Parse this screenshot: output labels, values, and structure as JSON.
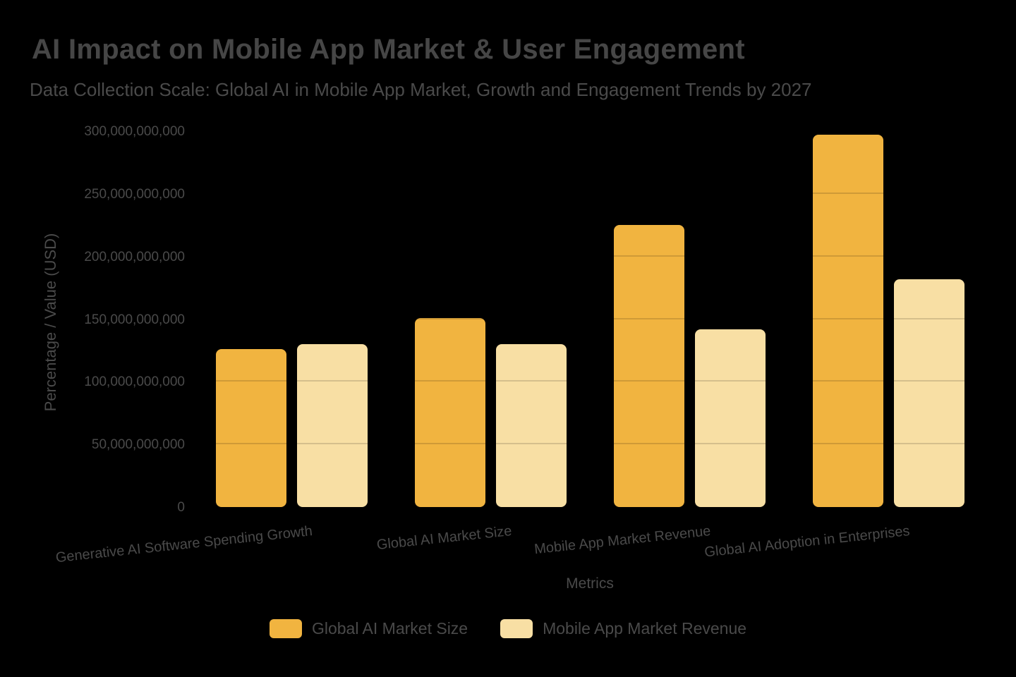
{
  "page": {
    "background": "#000000",
    "text_color": "#4a4a4a"
  },
  "chart_data": {
    "type": "bar",
    "title": "AI Impact on Mobile App Market & User Engagement",
    "subtitle": "Data Collection Scale: Global AI in Mobile App Market, Growth and Engagement Trends by 2027",
    "xlabel": "Metrics",
    "ylabel": "Percentage / Value (USD)",
    "categories": [
      "Generative AI Software Spending Growth",
      "Global AI Market Size",
      "Mobile App Market Revenue",
      "Global AI Adoption in Enterprises"
    ],
    "series": [
      {
        "name": "Global AI Market Size",
        "color": "#F1B440",
        "values": [
          126000000000,
          151000000000,
          225000000000,
          297000000000
        ]
      },
      {
        "name": "Mobile App Market Revenue",
        "color": "#F8DFA4",
        "values": [
          130000000000,
          130000000000,
          142000000000,
          182000000000
        ]
      }
    ],
    "ylim": [
      0,
      300000000000
    ],
    "ytick_labels": [
      "0",
      "50,000,000,000",
      "100,000,000,000",
      "150,000,000,000",
      "200,000,000,000",
      "250,000,000,000",
      "300,000,000,000"
    ],
    "grid": "overlay-on-bars",
    "legend_position": "bottom"
  }
}
